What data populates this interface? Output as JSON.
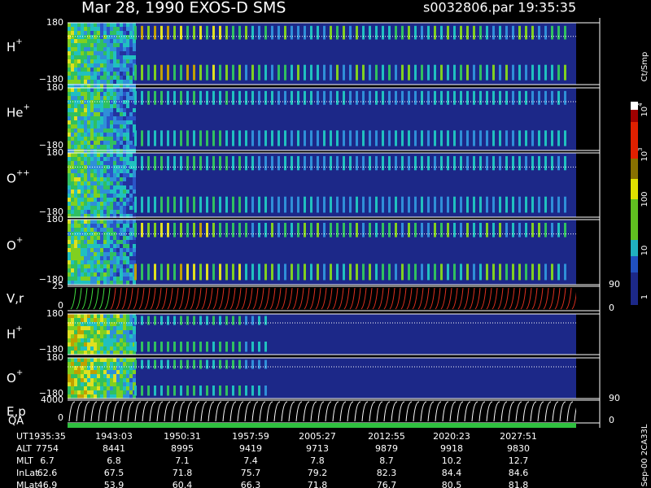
{
  "header": {
    "title": "Mar 28, 1990   EXOS-D SMS",
    "file": "s0032806.par  19:35:35"
  },
  "panels": [
    {
      "label": "H",
      "charge": "+",
      "top_tick": "180",
      "bottom_tick": "−180"
    },
    {
      "label": "He",
      "charge": "+",
      "top_tick": "180",
      "bottom_tick": "−180"
    },
    {
      "label": "O",
      "charge": "++",
      "top_tick": "180",
      "bottom_tick": "−180"
    },
    {
      "label": "O",
      "charge": "+",
      "top_tick": "180",
      "bottom_tick": "−180"
    },
    {
      "label": "V,r",
      "top_tick": "25",
      "bottom_tick": "0",
      "right_top": "90",
      "right_bottom": "0"
    },
    {
      "label": "H",
      "charge": "+",
      "top_tick": "180",
      "bottom_tick": "−180"
    },
    {
      "label": "O",
      "charge": "+",
      "top_tick": "180",
      "bottom_tick": "−180"
    },
    {
      "label": "E,p",
      "top_tick": "4000",
      "bottom_tick": "0",
      "right_top": "90",
      "right_bottom": "0"
    }
  ],
  "qa_label": "QA",
  "colorbar": {
    "unit": "Ct/Smp",
    "ticks": [
      {
        "base": "10",
        "exp": "4"
      },
      {
        "base": "10",
        "exp": "3"
      },
      {
        "base": "100"
      },
      {
        "base": "10"
      },
      {
        "base": "1"
      }
    ]
  },
  "footer": {
    "rows": [
      {
        "label": "UT",
        "values": [
          "1935:35",
          "1943:03",
          "1950:31",
          "1957:59",
          "2005:27",
          "2012:55",
          "2020:23",
          "2027:51"
        ]
      },
      {
        "label": "ALT",
        "values": [
          7754,
          8441,
          8995,
          9419,
          9713,
          9879,
          9918,
          9830
        ]
      },
      {
        "label": "MLT",
        "values": [
          6.7,
          6.8,
          7.1,
          7.4,
          7.8,
          8.7,
          10.2,
          12.7
        ]
      },
      {
        "label": "InLat",
        "values": [
          62.6,
          67.5,
          71.8,
          75.7,
          79.2,
          82.3,
          84.4,
          84.6
        ]
      },
      {
        "label": "MLat",
        "values": [
          46.9,
          53.9,
          60.4,
          66.3,
          71.8,
          76.7,
          80.5,
          81.8
        ]
      }
    ]
  },
  "stamp": "Sep-00  2CA33L"
}
